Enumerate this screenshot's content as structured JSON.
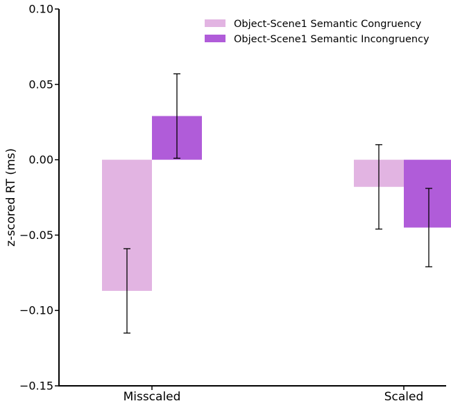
{
  "chart_data": {
    "type": "bar",
    "title": "",
    "xlabel": "",
    "ylabel": "z-scored RT (ms)",
    "categories": [
      "Misscaled",
      "Scaled"
    ],
    "ylim": [
      -0.15,
      0.1
    ],
    "yticks": [
      0.1,
      0.05,
      0.0,
      -0.05,
      -0.1,
      -0.15
    ],
    "ytick_labels": [
      "0.10",
      "0.05",
      "0.00",
      "−0.05",
      "−0.10",
      "−0.15"
    ],
    "grid": false,
    "legend_position": "top-right",
    "series": [
      {
        "name": "Object-Scene1 Semantic Congruency",
        "color": "#e2b4e2",
        "values": [
          -0.087,
          -0.018
        ],
        "errors": [
          0.028,
          0.028
        ]
      },
      {
        "name": "Object-Scene1 Semantic Incongruency",
        "color": "#b05cd9",
        "values": [
          0.029,
          -0.045
        ],
        "errors": [
          0.028,
          0.026
        ]
      }
    ]
  }
}
